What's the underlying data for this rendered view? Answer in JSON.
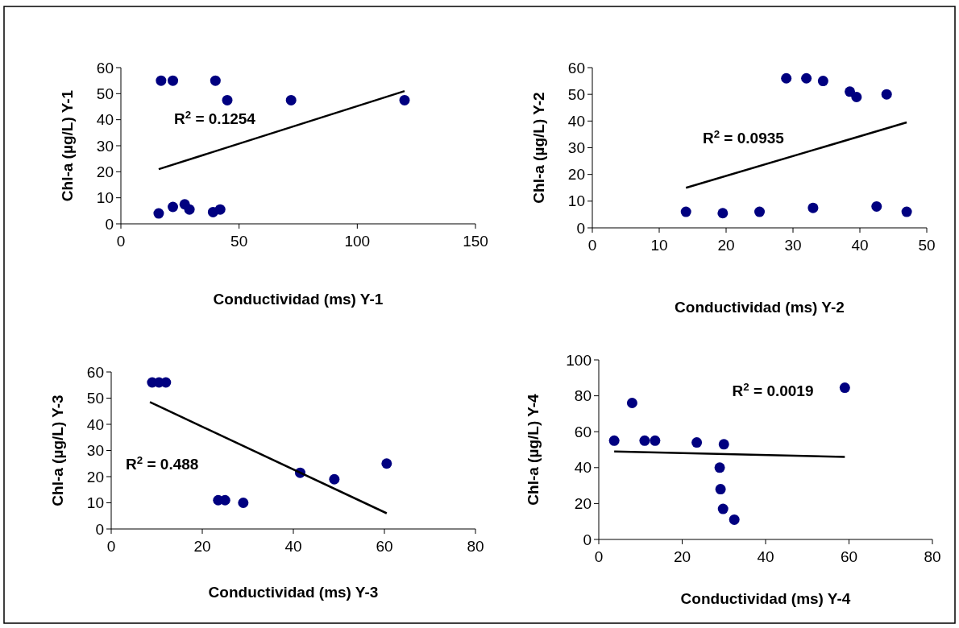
{
  "chart_data": [
    {
      "type": "scatter",
      "xlabel": "Conductividad (ms) Y-1",
      "ylabel": "Chl-a (µg/L) Y-1",
      "xlim": [
        0,
        150
      ],
      "xticks": [
        0,
        50,
        100,
        150
      ],
      "ylim": [
        0,
        60
      ],
      "yticks": [
        0,
        10,
        20,
        30,
        40,
        50,
        60
      ],
      "grid": false,
      "marker": "circle",
      "annotations": [
        "R$^{2}$ = 0.1254"
      ],
      "series": [
        {
          "color": "#000080",
          "x": [
            17,
            22,
            40,
            45,
            72,
            120,
            16,
            22,
            27,
            29,
            39,
            42
          ],
          "values": [
            55,
            55,
            55,
            47.5,
            47.5,
            47.5,
            4,
            6.5,
            7.5,
            5.5,
            4.5,
            5.5
          ]
        },
        {
          "type": "line",
          "color": "#000000",
          "marker": "none",
          "line_style": "solid",
          "x": [
            16,
            120
          ],
          "values": [
            21,
            51
          ]
        }
      ]
    },
    {
      "type": "scatter",
      "xlabel": "Conductividad  (ms) Y-2",
      "ylabel": "Chl-a (µg/L) Y-2",
      "xlim": [
        0,
        50
      ],
      "xticks": [
        0,
        10,
        20,
        30,
        40,
        50
      ],
      "ylim": [
        0,
        60
      ],
      "yticks": [
        0,
        10,
        20,
        30,
        40,
        50,
        60
      ],
      "grid": false,
      "marker": "circle",
      "annotations": [
        "R$^{2}$ = 0.0935"
      ],
      "series": [
        {
          "color": "#000080",
          "x": [
            29,
            32,
            34.5,
            38.5,
            39.5,
            44,
            14,
            19.5,
            25,
            33,
            42.5,
            47
          ],
          "values": [
            56,
            56,
            55,
            51,
            49,
            50,
            6,
            5.5,
            6,
            7.5,
            8,
            6
          ]
        },
        {
          "type": "line",
          "color": "#000000",
          "marker": "none",
          "line_style": "solid",
          "x": [
            14,
            47
          ],
          "values": [
            15,
            39.5
          ]
        }
      ]
    },
    {
      "type": "scatter",
      "xlabel": "Conductividad (ms)  Y-3",
      "ylabel": "Chl-a (µg/L) Y-3",
      "xlim": [
        0,
        80
      ],
      "xticks": [
        0,
        20,
        40,
        60,
        80
      ],
      "ylim": [
        0,
        60
      ],
      "yticks": [
        0,
        10,
        20,
        30,
        40,
        50,
        60
      ],
      "grid": false,
      "marker": "circle",
      "annotations": [
        "R$^{2}$ = 0.488"
      ],
      "series": [
        {
          "color": "#000080",
          "x": [
            9,
            10.5,
            12,
            23.5,
            25,
            29,
            41.5,
            49,
            60.5
          ],
          "values": [
            56,
            56,
            56,
            11,
            11,
            10,
            21.5,
            19,
            25
          ]
        },
        {
          "type": "line",
          "color": "#000000",
          "marker": "none",
          "line_style": "solid",
          "x": [
            8.5,
            60.5
          ],
          "values": [
            48.5,
            6
          ]
        }
      ]
    },
    {
      "type": "scatter",
      "xlabel": "Conductividad (ms) Y-4",
      "ylabel": "Chl-a (µg/L) Y-4",
      "xlim": [
        0,
        80
      ],
      "xticks": [
        0,
        20,
        40,
        60,
        80
      ],
      "ylim": [
        0,
        100
      ],
      "yticks": [
        0,
        20,
        40,
        60,
        80,
        100
      ],
      "grid": false,
      "marker": "circle",
      "annotations": [
        "R$^{2}$ = 0.0019"
      ],
      "series": [
        {
          "color": "#000080",
          "x": [
            3.7,
            8,
            11,
            13.5,
            23.5,
            30,
            29,
            29.2,
            29.8,
            32.5,
            59
          ],
          "values": [
            55,
            76,
            55,
            55,
            54,
            53,
            40,
            28,
            17,
            11,
            84.5
          ]
        },
        {
          "type": "line",
          "color": "#000000",
          "marker": "none",
          "line_style": "solid",
          "x": [
            3.7,
            59
          ],
          "values": [
            49,
            46
          ]
        }
      ]
    }
  ]
}
